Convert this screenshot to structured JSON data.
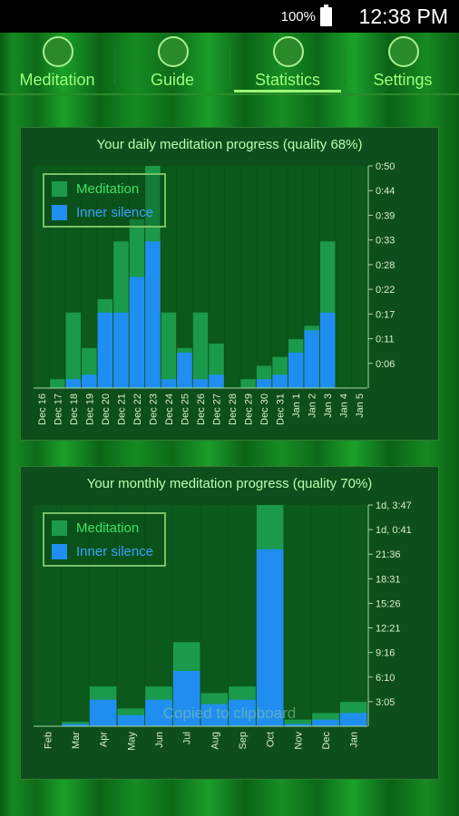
{
  "status_bar": {
    "battery_percent": "100%",
    "time": "12:38 PM"
  },
  "tabs": [
    {
      "label": "Meditation",
      "icon": "meditation-icon"
    },
    {
      "label": "Guide",
      "icon": "info-icon"
    },
    {
      "label": "Statistics",
      "icon": "statistics-icon",
      "active": true
    },
    {
      "label": "Settings",
      "icon": "gear-icon"
    }
  ],
  "colors": {
    "meditation": "#1a9a4a",
    "inner_silence": "#1f8ef0",
    "accent": "#9cff7a"
  },
  "legend": {
    "meditation": "Meditation",
    "inner_silence": "Inner silence"
  },
  "toast": "Copied to clipboard",
  "chart_data": [
    {
      "type": "bar",
      "title": "Your daily meditation progress (quality 68%)",
      "categories": [
        "Dec 16",
        "Dec 17",
        "Dec 18",
        "Dec 19",
        "Dec 20",
        "Dec 21",
        "Dec 22",
        "Dec 23",
        "Dec 24",
        "Dec 25",
        "Dec 26",
        "Dec 27",
        "Dec 28",
        "Dec 29",
        "Dec 30",
        "Dec 31",
        "Jan 1",
        "Jan 2",
        "Jan 3",
        "Jan 4",
        "Jan 5"
      ],
      "series": [
        {
          "name": "Meditation",
          "values": [
            0,
            0.02,
            0.17,
            0.09,
            0.2,
            0.33,
            0.38,
            0.5,
            0.17,
            0.09,
            0.17,
            0.1,
            0,
            0.02,
            0.05,
            0.07,
            0.11,
            0.14,
            0.33,
            0,
            0
          ]
        },
        {
          "name": "Inner silence",
          "values": [
            0,
            0,
            0.02,
            0.03,
            0.17,
            0.17,
            0.25,
            0.33,
            0.02,
            0.08,
            0.02,
            0.03,
            0,
            0,
            0.02,
            0.03,
            0.08,
            0.13,
            0.17,
            0,
            0
          ]
        }
      ],
      "y_tick_labels": [
        "0:06",
        "0:11",
        "0:17",
        "0:22",
        "0:28",
        "0:33",
        "0:39",
        "0:44",
        "0:50"
      ],
      "ylim": [
        0,
        0.5
      ]
    },
    {
      "type": "bar",
      "title": "Your monthly meditation progress (quality 70%)",
      "categories": [
        "Feb",
        "Mar",
        "Apr",
        "May",
        "Jun",
        "Jul",
        "Aug",
        "Sep",
        "Oct",
        "Nov",
        "Dec",
        "Jan"
      ],
      "series": [
        {
          "name": "Meditation",
          "values": [
            0,
            0.02,
            0.18,
            0.08,
            0.18,
            0.38,
            0.15,
            0.18,
            1.0,
            0.03,
            0.06,
            0.11
          ]
        },
        {
          "name": "Inner silence",
          "values": [
            0,
            0.01,
            0.12,
            0.05,
            0.12,
            0.25,
            0.1,
            0.12,
            0.8,
            0.01,
            0.03,
            0.06
          ]
        }
      ],
      "y_tick_labels": [
        "3:05",
        "6:10",
        "9:16",
        "12:21",
        "15:26",
        "18:31",
        "21:36",
        "1d, 0:41",
        "1d, 3:47"
      ],
      "ylim": [
        0,
        1.0
      ]
    }
  ]
}
